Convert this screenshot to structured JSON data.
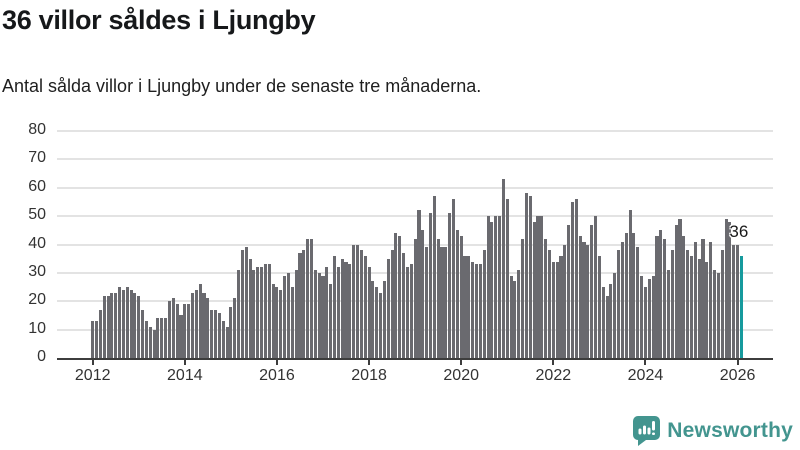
{
  "title": "36 villor såldes i Ljungby",
  "subtitle": "Antal sålda villor i Ljungby under de senaste tre månaderna.",
  "annotation": {
    "label": "36"
  },
  "branding": {
    "name": "Newsworthy",
    "icon": "newsworthy-speech-bubble-bar-chart-icon"
  },
  "colors": {
    "bar": "#6a6a6f",
    "highlight": "#169a9d",
    "grid": "#e3e3e3",
    "axis": "#3d3d3d",
    "tick_text": "#333333",
    "title_text": "#16181a",
    "brand": "#43958f"
  },
  "chart_data": {
    "type": "bar",
    "title": "36 villor såldes i Ljungby",
    "subtitle": "Antal sålda villor i Ljungby under de senaste tre månaderna.",
    "x_monthly_from": "2012-01",
    "x_monthly_to": "2026-02",
    "x_tick_labels": [
      "2012",
      "2014",
      "2016",
      "2018",
      "2020",
      "2022",
      "2024",
      "2026"
    ],
    "y_ticks": [
      0,
      10,
      20,
      30,
      40,
      50,
      60,
      70,
      80
    ],
    "ylim": [
      0,
      80
    ],
    "grid": "horizontal-only",
    "legend": "none",
    "highlight_last_value": 36,
    "values": [
      13,
      13,
      17,
      22,
      22,
      23,
      23,
      25,
      24,
      25,
      24,
      23,
      22,
      17,
      13,
      11,
      10,
      14,
      14,
      14,
      20,
      21,
      19,
      15,
      19,
      19,
      23,
      24,
      26,
      23,
      21,
      17,
      17,
      16,
      13,
      11,
      18,
      21,
      31,
      38,
      39,
      35,
      31,
      32,
      32,
      33,
      33,
      26,
      25,
      24,
      29,
      30,
      25,
      31,
      37,
      38,
      42,
      42,
      31,
      30,
      29,
      32,
      26,
      36,
      32,
      35,
      34,
      33,
      40,
      40,
      38,
      36,
      32,
      27,
      25,
      23,
      27,
      35,
      38,
      44,
      43,
      37,
      32,
      33,
      42,
      52,
      45,
      39,
      51,
      57,
      42,
      39,
      39,
      51,
      56,
      45,
      43,
      36,
      36,
      34,
      33,
      33,
      38,
      50,
      48,
      50,
      50,
      63,
      56,
      29,
      27,
      31,
      42,
      58,
      57,
      48,
      50,
      50,
      42,
      38,
      34,
      34,
      36,
      40,
      47,
      55,
      56,
      43,
      41,
      40,
      47,
      50,
      36,
      25,
      22,
      26,
      30,
      38,
      41,
      44,
      52,
      44,
      39,
      29,
      25,
      28,
      29,
      43,
      45,
      42,
      31,
      38,
      47,
      49,
      43,
      38,
      36,
      41,
      35,
      42,
      34,
      41,
      31,
      30,
      38,
      49,
      48,
      40,
      40,
      36
    ]
  }
}
